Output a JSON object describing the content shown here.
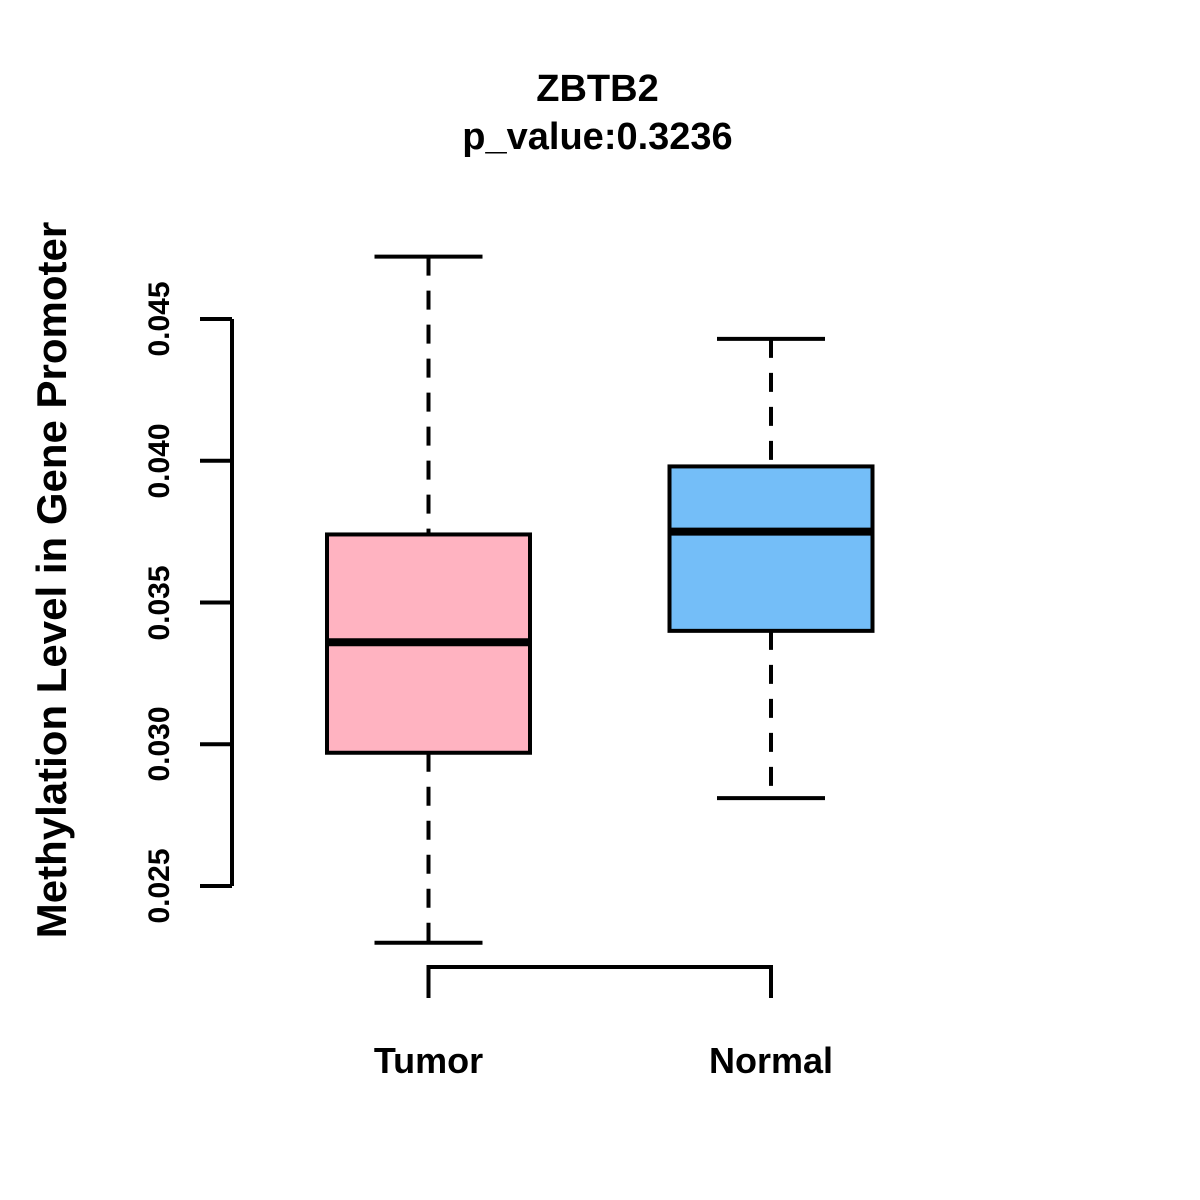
{
  "chart_data": {
    "type": "boxplot",
    "title": "ZBTB2",
    "subtitle": "p_value:0.3236",
    "ylabel": "Methylation Level in Gene Promoter",
    "xlabel": "",
    "categories": [
      "Tumor",
      "Normal"
    ],
    "yticks": [
      0.025,
      0.03,
      0.035,
      0.04,
      0.045
    ],
    "ytick_labels": [
      "0.025",
      "0.030",
      "0.035",
      "0.040",
      "0.045"
    ],
    "ylim": [
      0.023,
      0.0472
    ],
    "grid": "off",
    "legend": "none",
    "series": [
      {
        "name": "Tumor",
        "color": "#FFB3C1",
        "whisker_low": 0.023,
        "q1": 0.0297,
        "median": 0.0336,
        "q3": 0.0374,
        "whisker_high": 0.0472
      },
      {
        "name": "Normal",
        "color": "#74BEF8",
        "whisker_low": 0.0281,
        "q1": 0.034,
        "median": 0.0375,
        "q3": 0.0398,
        "whisker_high": 0.0443
      }
    ],
    "line_color": "#000000"
  }
}
